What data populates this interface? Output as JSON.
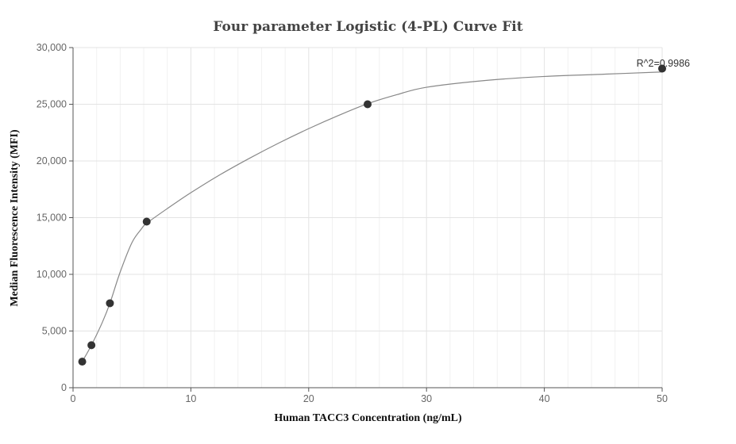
{
  "chart_data": {
    "type": "scatter",
    "title": "Four parameter Logistic (4-PL) Curve Fit",
    "xlabel": "Human TACC3 Concentration (ng/mL)",
    "ylabel": "Median Fluorescence Intensity (MFI)",
    "xlim": [
      0,
      50
    ],
    "ylim": [
      0,
      30000
    ],
    "x_ticks": [
      0,
      10,
      20,
      30,
      40,
      50
    ],
    "y_ticks": [
      0,
      5000,
      10000,
      15000,
      20000,
      25000,
      30000
    ],
    "x_tick_labels": [
      "0",
      "10",
      "20",
      "30",
      "40",
      "50"
    ],
    "y_tick_labels": [
      "0",
      "5,000",
      "10,000",
      "15,000",
      "20,000",
      "25,000",
      "30,000"
    ],
    "grid": true,
    "legend": "none",
    "annotation": "R^2=0.9986",
    "series": [
      {
        "type": "scatter",
        "x": [
          0.78,
          1.56,
          3.13,
          6.25,
          25,
          50
        ],
        "y": [
          2300,
          3750,
          7450,
          14650,
          25000,
          28150
        ],
        "color": "#333333"
      },
      {
        "type": "line",
        "x": [
          0.78,
          1.56,
          2.5,
          3.13,
          4.0,
          5.0,
          5.8,
          6.25,
          8,
          10,
          12.5,
          15,
          17.5,
          20,
          22.5,
          25,
          27.5,
          30,
          35,
          40,
          45,
          50
        ],
        "y": [
          2300,
          3750,
          5800,
          7450,
          10200,
          12800,
          14000,
          14500,
          15800,
          17200,
          18800,
          20250,
          21600,
          22850,
          24000,
          25050,
          25850,
          26500,
          27100,
          27450,
          27650,
          27850
        ],
        "color": "#888888"
      }
    ]
  }
}
